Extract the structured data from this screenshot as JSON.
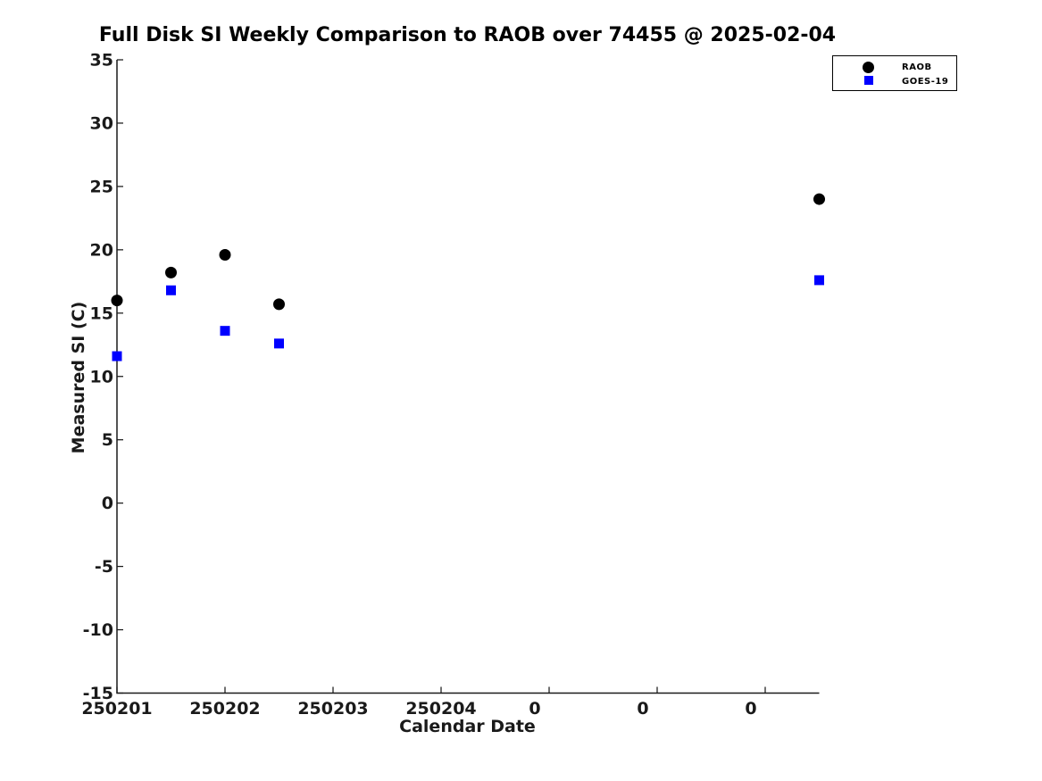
{
  "chart_data": {
    "type": "scatter",
    "title": "Full Disk SI Weekly Comparison to RAOB over 74455 @ 2025-02-04",
    "xlabel": "Calendar Date",
    "ylabel": "Measured SI (C)",
    "x_tick_labels": [
      "250201",
      "250202",
      "250203",
      "250204",
      "0",
      "0",
      "0"
    ],
    "x_tick_positions_days": [
      0,
      1,
      2,
      3,
      4,
      5,
      6
    ],
    "xlim_days": [
      0,
      6.5
    ],
    "y_ticks": [
      35,
      30,
      25,
      20,
      15,
      10,
      5,
      0,
      -5,
      -10,
      -15
    ],
    "ylim": [
      -15,
      35
    ],
    "grid": false,
    "legend_position": "top-right",
    "x_days_since_250201": [
      0,
      0.5,
      1,
      1.5,
      6.5
    ],
    "series": [
      {
        "name": "RAOB",
        "marker": "circle",
        "color": "#000000",
        "values": [
          16.0,
          18.2,
          19.6,
          15.7,
          24.0
        ]
      },
      {
        "name": "GOES-19",
        "marker": "square",
        "color": "#0000ff",
        "values": [
          11.6,
          16.8,
          13.6,
          12.6,
          17.6
        ]
      }
    ],
    "axis_color": "#1a1a1a",
    "background_color": "#ffffff"
  }
}
